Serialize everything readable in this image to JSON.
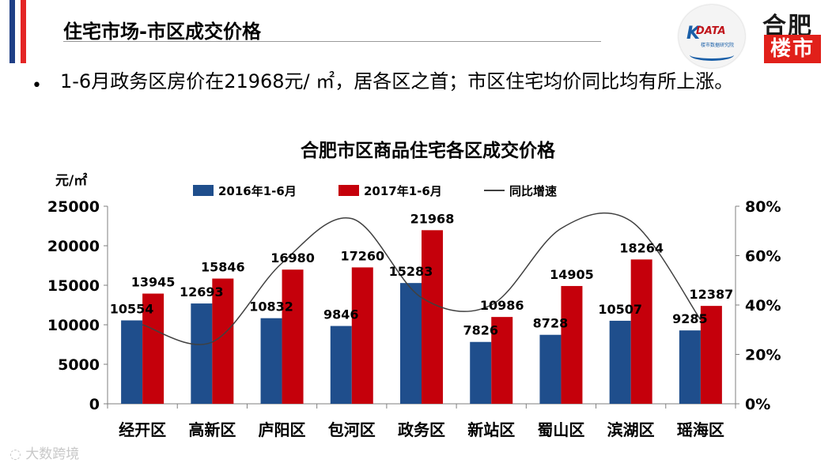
{
  "header": {
    "title": "住宅市场-市区成交价格",
    "accent_colors": [
      "#1f3f86",
      "#ffffff",
      "#e42525"
    ]
  },
  "logos": {
    "data_logo": {
      "mark": "K",
      "text": "DATA",
      "subtext": "楼市数据研究院"
    },
    "market_logo": {
      "line1": "合肥",
      "line2": "楼市"
    }
  },
  "bullet": {
    "text": "1-6月政务区房价在21968元/ ㎡，居各区之首；市区住宅均价同比均有所上涨。"
  },
  "watermark": "大数跨境",
  "chart_data": {
    "type": "bar",
    "title": "合肥市区商品住宅各区成交价格",
    "ylabel": "元/㎡",
    "categories": [
      "经开区",
      "高新区",
      "庐阳区",
      "包河区",
      "政务区",
      "新站区",
      "蜀山区",
      "滨湖区",
      "瑶海区"
    ],
    "series": [
      {
        "name": "2016年1-6月",
        "type": "bar",
        "color": "#1f4e8c",
        "values": [
          10554,
          12693,
          10832,
          9846,
          15283,
          7826,
          8728,
          10507,
          9285
        ]
      },
      {
        "name": "2017年1-6月",
        "type": "bar",
        "color": "#c5000b",
        "values": [
          13945,
          15846,
          16980,
          17260,
          21968,
          10986,
          14905,
          18264,
          12387
        ]
      },
      {
        "name": "同比增速",
        "type": "line",
        "axis": "right",
        "color": "#404040",
        "values": [
          32,
          25,
          57,
          75,
          43,
          40,
          71,
          74,
          34
        ]
      }
    ],
    "ylim": [
      0,
      25000
    ],
    "yticks": [
      "0",
      "5000",
      "10000",
      "15000",
      "20000",
      "25000"
    ],
    "y2lim": [
      0,
      80
    ],
    "y2ticks": [
      "0%",
      "20%",
      "40%",
      "60%",
      "80%"
    ],
    "legend_position": "top",
    "grid": false
  }
}
